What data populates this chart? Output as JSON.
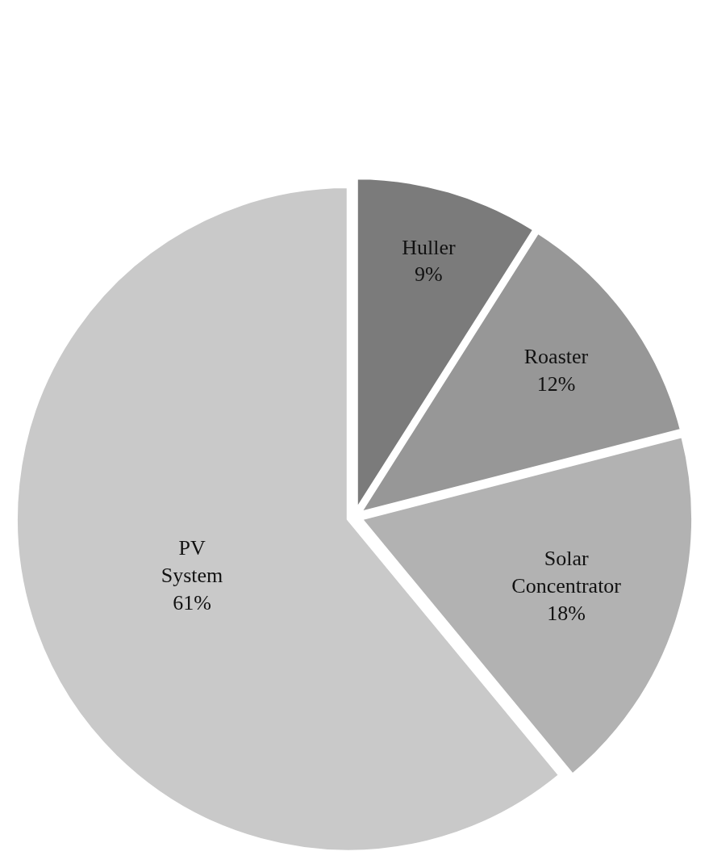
{
  "chart_data": {
    "type": "pie",
    "categories": [
      "Huller",
      "Roaster",
      "Solar Concentrator",
      "PV System"
    ],
    "values": [
      9,
      12,
      18,
      61
    ],
    "colors": [
      "#7b7b7b",
      "#979797",
      "#b2b2b2",
      "#c9c9c9"
    ],
    "value_labels": [
      "9%",
      "12%",
      "18%",
      "61%"
    ],
    "legend": false
  }
}
